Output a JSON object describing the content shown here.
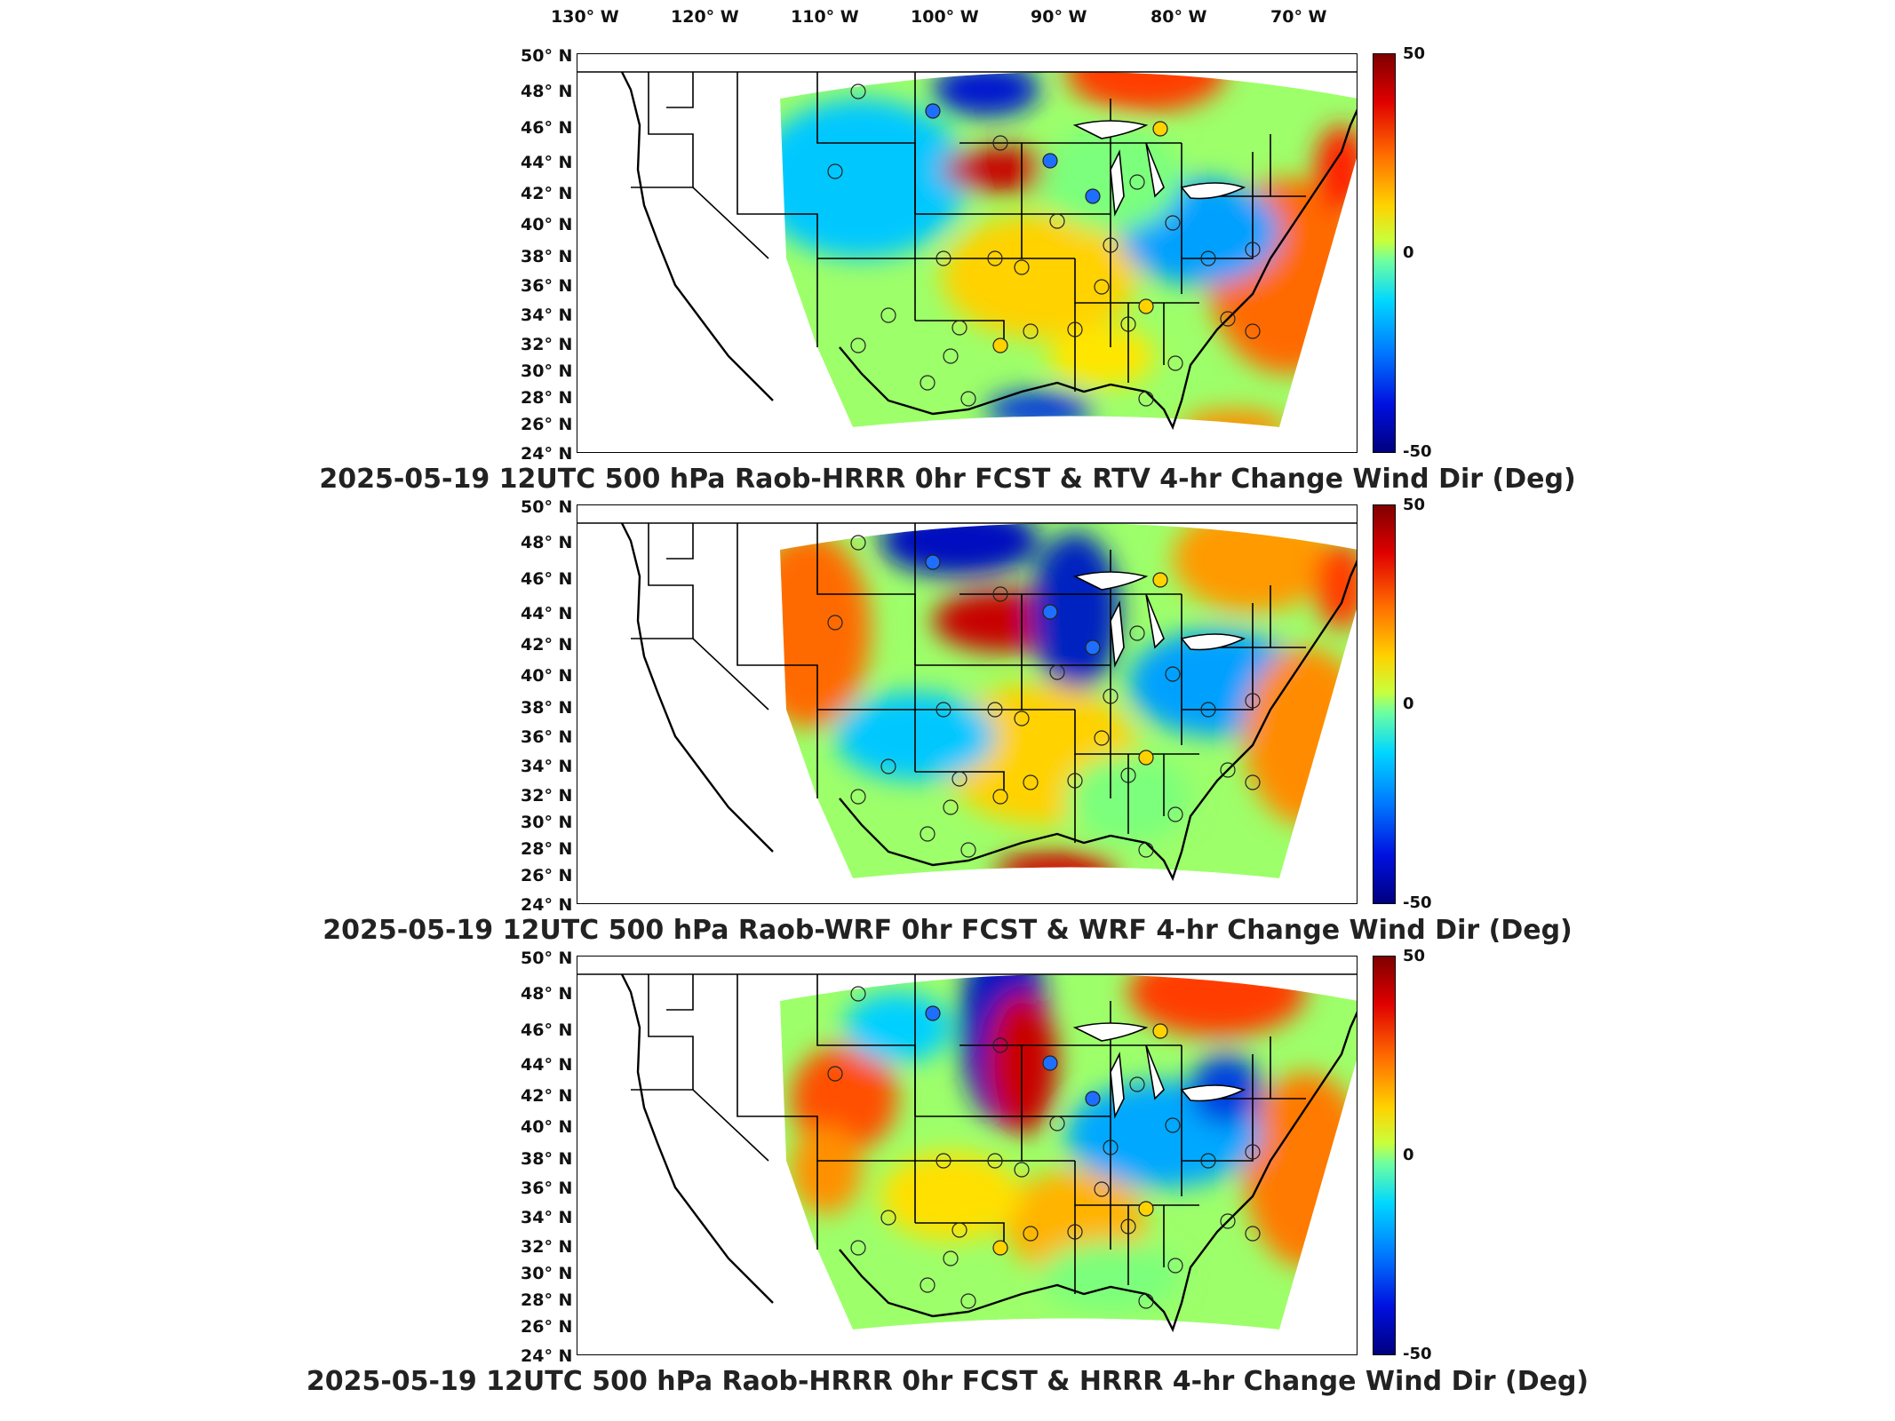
{
  "longitude_labels": [
    "130° W",
    "120° W",
    "110° W",
    "100° W",
    "90° W",
    "80° W",
    "70° W"
  ],
  "latitude_labels": [
    "50° N",
    "48° N",
    "46° N",
    "44° N",
    "42° N",
    "40° N",
    "38° N",
    "36° N",
    "34° N",
    "32° N",
    "30° N",
    "28° N",
    "26° N",
    "24° N"
  ],
  "colorbar": {
    "max": "50",
    "mid": "0",
    "min": "-50"
  },
  "panels": [
    {
      "title": "2025-05-19 12UTC 500 hPa Raob-HRRR 0hr FCST & RTV 4-hr Change Wind Dir (Deg)"
    },
    {
      "title": "2025-05-19 12UTC 500 hPa Raob-WRF 0hr FCST & WRF 4-hr Change Wind Dir (Deg)"
    },
    {
      "title": "2025-05-19 12UTC 500 hPa Raob-HRRR 0hr FCST & HRRR 4-hr Change Wind Dir (Deg)"
    }
  ]
}
